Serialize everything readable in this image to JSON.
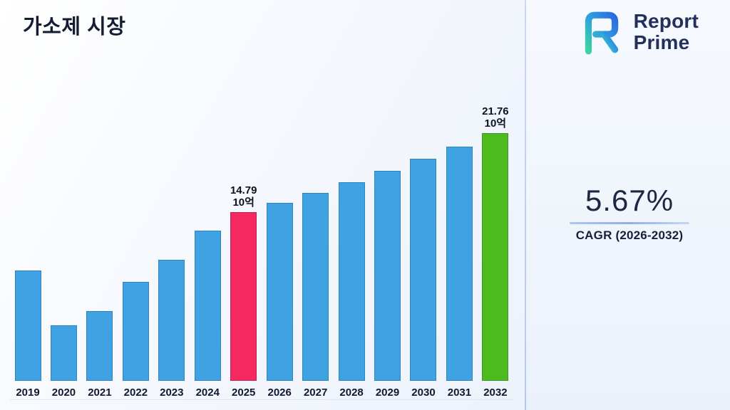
{
  "title": "가소제 시장",
  "logo": {
    "line1": "Report",
    "line2": "Prime"
  },
  "cagr": {
    "value": "5.67%",
    "label": "CAGR (2026-2032)"
  },
  "chart_data": {
    "type": "bar",
    "title": "가소제 시장",
    "unit": "10억",
    "categories": [
      "2019",
      "2020",
      "2021",
      "2022",
      "2023",
      "2024",
      "2025",
      "2026",
      "2027",
      "2028",
      "2029",
      "2030",
      "2031",
      "2032"
    ],
    "values": [
      9.7,
      4.9,
      6.1,
      8.7,
      10.6,
      13.2,
      14.79,
      15.63,
      16.51,
      17.45,
      18.44,
      19.48,
      20.59,
      21.76
    ],
    "xlabel": "",
    "ylabel": "",
    "ylim": [
      0,
      22.5
    ],
    "grid": false,
    "legend": false,
    "bar_color": "#3FA2E2",
    "highlight_colors": {
      "2025": "#F5285F",
      "2032": "#4CBB1E"
    },
    "annotations": {
      "2025": [
        "14.79",
        "10억"
      ],
      "2032": [
        "21.76",
        "10억"
      ]
    }
  }
}
